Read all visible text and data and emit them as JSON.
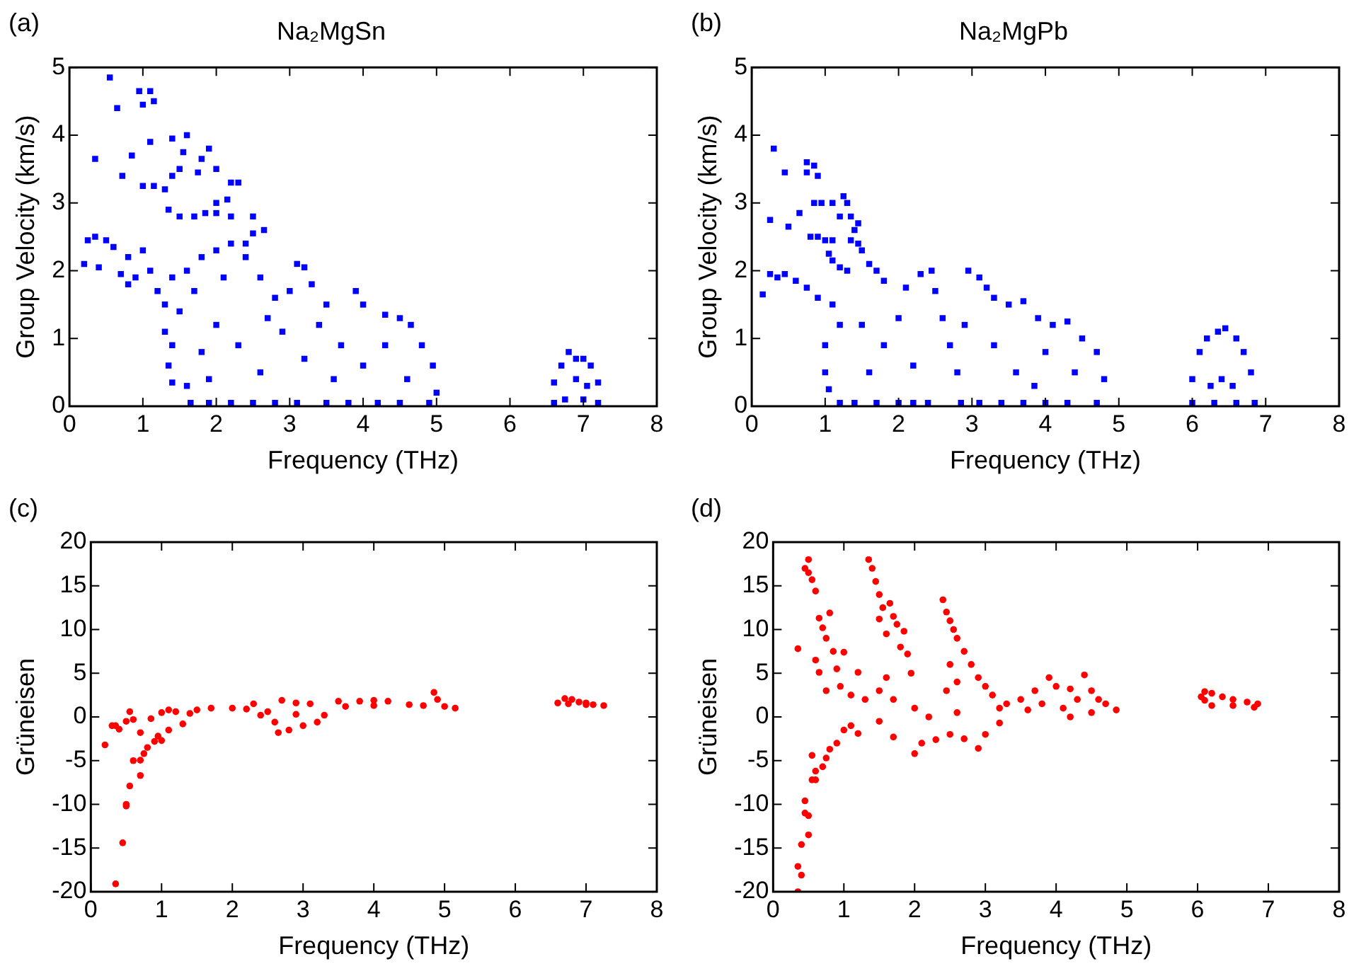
{
  "chart_data": [
    {
      "type": "scatter",
      "title": "Na₂MgSn",
      "annotations": [
        "(a)"
      ],
      "xlabel": "Frequency (THz)",
      "ylabel": "Group Velocity (km/s)",
      "xlim": [
        0,
        8
      ],
      "xticks": [
        0,
        1,
        2,
        3,
        4,
        5,
        6,
        7,
        8
      ],
      "ylim": [
        0,
        5
      ],
      "yticks": [
        0,
        1,
        2,
        3,
        4,
        5
      ],
      "marker": "square",
      "legend": false,
      "grid": false,
      "series": [
        {
          "color": "#0000ff",
          "x": [
            0.55,
            0.65,
            0.95,
            1.1,
            1.0,
            1.15,
            0.35,
            0.85,
            0.72,
            1.1,
            1.4,
            1.6,
            1.55,
            1.8,
            1.9,
            1.0,
            1.15,
            1.3,
            1.4,
            1.5,
            1.75,
            2.0,
            2.2,
            2.3,
            2.0,
            2.15,
            1.35,
            1.5,
            1.7,
            1.85,
            2.0,
            2.2,
            2.5,
            2.5,
            2.65,
            2.4,
            3.1,
            3.2,
            0.2,
            0.25,
            0.35,
            0.5,
            0.6,
            0.8,
            1.0,
            0.4,
            0.7,
            0.9,
            1.1,
            1.2,
            0.8,
            1.4,
            1.6,
            1.8,
            2.0,
            2.2,
            2.4,
            1.3,
            1.5,
            1.7,
            2.1,
            2.6,
            2.8,
            3.0,
            3.3,
            3.5,
            3.9,
            4.0,
            4.3,
            4.5,
            4.65,
            4.8,
            4.95,
            5.0,
            4.9,
            1.3,
            1.4,
            1.35,
            1.4,
            1.6,
            1.65,
            1.9,
            2.2,
            2.5,
            2.8,
            3.1,
            3.5,
            3.8,
            4.2,
            4.5,
            1.8,
            2.0,
            2.3,
            2.6,
            2.9,
            3.2,
            3.4,
            3.7,
            4.0,
            4.3,
            4.6,
            2.7,
            3.6,
            1.9,
            6.6,
            6.6,
            6.7,
            6.8,
            6.9,
            7.0,
            7.1,
            7.2,
            7.2,
            6.75,
            7.0,
            6.9,
            7.05
          ],
          "values": [
            4.85,
            4.4,
            4.65,
            4.65,
            4.45,
            4.5,
            3.65,
            3.7,
            3.4,
            3.9,
            3.95,
            4.0,
            3.75,
            3.65,
            3.8,
            3.25,
            3.25,
            3.2,
            3.4,
            3.5,
            3.45,
            3.5,
            3.3,
            3.3,
            3.0,
            3.05,
            2.9,
            2.8,
            2.8,
            2.85,
            2.85,
            2.8,
            2.8,
            2.55,
            2.6,
            2.4,
            2.1,
            2.05,
            2.1,
            2.45,
            2.5,
            2.45,
            2.35,
            2.2,
            2.3,
            2.05,
            1.95,
            1.9,
            2.0,
            1.7,
            1.8,
            1.9,
            2.0,
            2.2,
            2.3,
            2.4,
            2.2,
            1.5,
            1.4,
            1.7,
            1.9,
            1.9,
            1.6,
            1.7,
            1.8,
            1.5,
            1.7,
            1.5,
            1.35,
            1.3,
            1.2,
            0.9,
            0.6,
            0.2,
            0.05,
            1.1,
            0.9,
            0.6,
            0.35,
            0.3,
            0.05,
            0.05,
            0.05,
            0.05,
            0.05,
            0.05,
            0.05,
            0.05,
            0.05,
            0.05,
            0.8,
            1.2,
            0.9,
            0.5,
            1.1,
            0.7,
            1.2,
            0.9,
            0.6,
            0.9,
            0.4,
            1.3,
            0.4,
            0.4,
            0.05,
            0.35,
            0.6,
            0.8,
            0.7,
            0.7,
            0.6,
            0.35,
            0.05,
            0.1,
            0.1,
            0.4,
            0.3
          ]
        }
      ]
    },
    {
      "type": "scatter",
      "title": "Na₂MgPb",
      "annotations": [
        "(b)"
      ],
      "xlabel": "Frequency (THz)",
      "ylabel": "Group Velocity (km/s)",
      "xlim": [
        0,
        8
      ],
      "xticks": [
        0,
        1,
        2,
        3,
        4,
        5,
        6,
        7,
        8
      ],
      "ylim": [
        0,
        5
      ],
      "yticks": [
        0,
        1,
        2,
        3,
        4,
        5
      ],
      "marker": "square",
      "legend": false,
      "grid": false,
      "series": [
        {
          "color": "#0000ff",
          "x": [
            0.3,
            0.45,
            0.75,
            0.85,
            0.75,
            0.9,
            0.25,
            0.5,
            0.65,
            0.85,
            0.95,
            1.1,
            1.25,
            1.3,
            1.2,
            1.35,
            1.4,
            1.45,
            1.35,
            1.45,
            1.5,
            0.8,
            0.9,
            1.0,
            1.1,
            1.05,
            1.1,
            1.2,
            1.3,
            1.6,
            1.7,
            1.8,
            0.15,
            0.25,
            0.35,
            0.45,
            0.6,
            0.75,
            0.9,
            1.1,
            1.2,
            1.0,
            1.0,
            1.05,
            1.2,
            1.4,
            1.7,
            2.0,
            2.2,
            2.4,
            2.1,
            2.3,
            2.45,
            2.5,
            2.6,
            2.7,
            2.8,
            2.85,
            3.1,
            3.4,
            3.7,
            4.0,
            4.3,
            4.7,
            2.9,
            2.95,
            3.1,
            3.2,
            3.3,
            3.5,
            3.7,
            3.9,
            4.1,
            4.3,
            4.5,
            4.7,
            4.8,
            1.5,
            1.8,
            2.0,
            2.2,
            1.6,
            3.3,
            3.6,
            4.0,
            4.4,
            3.85,
            6.0,
            6.0,
            6.1,
            6.2,
            6.35,
            6.45,
            6.6,
            6.7,
            6.8,
            6.85,
            6.25,
            6.55,
            6.3,
            6.6,
            6.4
          ],
          "values": [
            3.8,
            3.45,
            3.6,
            3.55,
            3.45,
            3.4,
            2.75,
            2.65,
            2.85,
            3.0,
            3.0,
            3.0,
            3.1,
            3.0,
            2.8,
            2.8,
            2.6,
            2.7,
            2.45,
            2.4,
            2.3,
            2.5,
            2.5,
            2.45,
            2.45,
            2.25,
            2.15,
            2.05,
            2.0,
            2.1,
            2.0,
            1.85,
            1.65,
            1.95,
            1.9,
            1.95,
            1.85,
            1.75,
            1.6,
            1.5,
            1.2,
            0.9,
            0.5,
            0.25,
            0.05,
            0.05,
            0.05,
            0.05,
            0.05,
            0.05,
            1.75,
            1.95,
            2.0,
            1.7,
            1.3,
            0.9,
            0.5,
            0.05,
            0.05,
            0.05,
            0.05,
            0.05,
            0.05,
            0.05,
            1.2,
            2.0,
            1.9,
            1.75,
            1.6,
            1.5,
            1.55,
            1.3,
            1.2,
            1.25,
            1.0,
            0.8,
            0.4,
            1.2,
            0.9,
            1.3,
            0.6,
            0.5,
            0.9,
            0.5,
            0.8,
            0.5,
            0.3,
            0.05,
            0.4,
            0.8,
            1.0,
            1.1,
            1.15,
            1.0,
            0.8,
            0.5,
            0.05,
            0.3,
            0.3,
            0.05,
            0.05,
            0.4
          ]
        }
      ]
    },
    {
      "type": "scatter",
      "annotations": [
        "(c)"
      ],
      "xlabel": "Frequency (THz)",
      "ylabel": "Grüneisen",
      "xlim": [
        0,
        8
      ],
      "xticks": [
        0,
        1,
        2,
        3,
        4,
        5,
        6,
        7,
        8
      ],
      "ylim": [
        -20,
        20
      ],
      "yticks": [
        -20,
        -15,
        -10,
        -5,
        0,
        5,
        10,
        15,
        20
      ],
      "marker": "circle",
      "legend": false,
      "grid": false,
      "series": [
        {
          "color": "#ff0000",
          "x": [
            0.35,
            0.45,
            0.5,
            0.5,
            0.55,
            0.6,
            0.7,
            0.7,
            0.75,
            0.8,
            0.9,
            0.95,
            1.0,
            1.1,
            1.3,
            0.2,
            0.3,
            0.35,
            0.4,
            0.5,
            0.55,
            0.6,
            0.7,
            0.85,
            1.0,
            1.2,
            1.1,
            1.4,
            1.5,
            1.7,
            2.0,
            2.2,
            2.3,
            2.5,
            2.6,
            2.65,
            2.8,
            3.0,
            3.2,
            3.3,
            2.7,
            2.9,
            3.1,
            3.5,
            3.8,
            4.0,
            4.2,
            4.5,
            4.7,
            4.85,
            4.9,
            5.0,
            5.15,
            3.6,
            4.0,
            2.4,
            2.9,
            6.6,
            6.7,
            6.8,
            6.9,
            7.0,
            7.1,
            7.25,
            6.75,
            7.0
          ],
          "values": [
            -19.1,
            -14.4,
            -10.2,
            -10.0,
            -7.9,
            -5.0,
            -6.7,
            -4.95,
            -4.2,
            -3.5,
            -2.8,
            -2.2,
            -2.7,
            -1.5,
            -0.8,
            -3.2,
            -1.0,
            -1.0,
            -1.4,
            -0.5,
            0.6,
            -0.3,
            -1.8,
            -0.2,
            0.5,
            0.6,
            0.8,
            0.4,
            0.8,
            1.0,
            1.0,
            0.9,
            1.5,
            0.6,
            -0.6,
            -1.8,
            -1.5,
            -1.0,
            -0.6,
            0.2,
            1.9,
            1.6,
            1.5,
            1.8,
            1.8,
            1.9,
            1.8,
            1.4,
            1.3,
            2.8,
            2.0,
            1.2,
            1.0,
            1.2,
            1.3,
            0.2,
            0.3,
            1.6,
            2.1,
            2.0,
            1.7,
            1.4,
            1.4,
            1.3,
            1.5,
            1.6
          ]
        }
      ]
    },
    {
      "type": "scatter",
      "annotations": [
        "(d)"
      ],
      "xlabel": "Frequency (THz)",
      "ylabel": "Grüneisen",
      "xlim": [
        0,
        8
      ],
      "xticks": [
        0,
        1,
        2,
        3,
        4,
        5,
        6,
        7,
        8
      ],
      "ylim": [
        -20,
        20
      ],
      "yticks": [
        -20,
        -15,
        -10,
        -5,
        0,
        5,
        10,
        15,
        20
      ],
      "marker": "circle",
      "legend": false,
      "grid": false,
      "series": [
        {
          "color": "#ff0000",
          "x": [
            0.5,
            0.45,
            0.5,
            0.55,
            0.6,
            0.35,
            0.65,
            0.7,
            0.75,
            0.8,
            0.6,
            0.65,
            0.85,
            0.9,
            1.0,
            0.75,
            0.95,
            1.1,
            1.3,
            1.2,
            1.35,
            1.4,
            1.45,
            1.5,
            1.55,
            1.5,
            1.65,
            1.7,
            1.6,
            1.75,
            1.85,
            1.8,
            1.9,
            1.95,
            1.6,
            1.7,
            1.5,
            2.4,
            2.45,
            2.5,
            2.55,
            2.6,
            2.7,
            2.8,
            2.9,
            3.0,
            2.5,
            2.6,
            2.45,
            3.1,
            3.2,
            0.35,
            0.35,
            0.4,
            0.4,
            0.45,
            0.5,
            0.5,
            0.45,
            0.55,
            0.6,
            0.55,
            0.6,
            0.7,
            0.75,
            0.8,
            0.9,
            1.0,
            1.1,
            1.2,
            1.5,
            1.7,
            2.0,
            2.1,
            2.3,
            2.5,
            2.7,
            2.9,
            3.0,
            3.2,
            2.0,
            2.2,
            2.6,
            3.3,
            3.5,
            3.7,
            3.9,
            4.0,
            3.8,
            4.1,
            4.2,
            4.3,
            4.4,
            4.5,
            4.6,
            4.7,
            4.85,
            4.5,
            4.2,
            3.6,
            6.05,
            6.1,
            6.2,
            6.35,
            6.5,
            6.7,
            6.85,
            6.8,
            6.5,
            6.2,
            6.1
          ],
          "values": [
            18.0,
            17.0,
            16.5,
            15.7,
            14.4,
            7.8,
            11.3,
            10.2,
            9.0,
            11.9,
            6.5,
            5.1,
            7.5,
            5.5,
            7.4,
            3.0,
            3.5,
            2.5,
            2.0,
            5.1,
            18.0,
            17.0,
            15.5,
            14.0,
            12.5,
            11.2,
            13.0,
            11.5,
            9.5,
            10.6,
            9.8,
            8.0,
            7.2,
            5.0,
            4.5,
            2.0,
            3.0,
            13.4,
            12.0,
            11.0,
            10.0,
            9.0,
            7.5,
            6.0,
            4.5,
            3.5,
            6.0,
            4.0,
            3.0,
            2.5,
            1.0,
            -20,
            -17.1,
            -18.1,
            -14.6,
            -11.0,
            -13.5,
            -11.3,
            -9.6,
            -7.2,
            -7.2,
            -4.4,
            -6.2,
            -5.7,
            -4.7,
            -3.7,
            -3.0,
            -1.5,
            -1.0,
            -1.9,
            -0.5,
            -2.3,
            -4.2,
            -3.0,
            -2.6,
            -2.0,
            -2.5,
            -3.6,
            -2.0,
            -0.7,
            1.0,
            0.0,
            0.5,
            1.5,
            2.0,
            3.0,
            4.5,
            3.5,
            1.5,
            1.0,
            3.2,
            2.0,
            4.8,
            3.0,
            2.0,
            1.5,
            0.8,
            0.5,
            0.0,
            0.8,
            2.3,
            2.9,
            2.7,
            2.3,
            2.0,
            1.7,
            1.5,
            1.1,
            1.3,
            1.3,
            1.9
          ]
        }
      ]
    }
  ]
}
